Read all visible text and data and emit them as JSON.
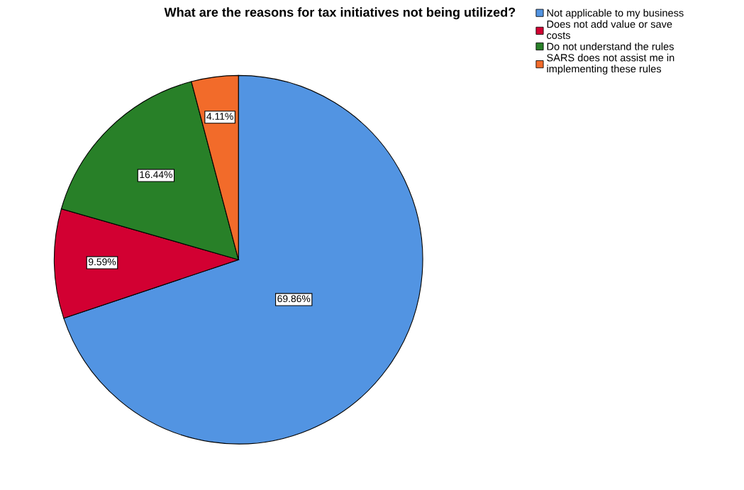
{
  "chart_data": {
    "type": "pie",
    "title": "What are the reasons for tax initiatives not being utilized?",
    "categories": [
      "Not applicable to my business",
      "Does not add value or save\ncosts",
      "Do not understand the rules",
      "SARS does not assist me in\nimplementing these rules"
    ],
    "values": [
      69.86,
      9.59,
      16.44,
      4.11
    ],
    "colors": [
      "#5294e2",
      "#d20032",
      "#288028",
      "#f26b2a"
    ],
    "value_labels": [
      "69.86%",
      "9.59%",
      "16.44%",
      "4.11%"
    ],
    "legend": "top right"
  }
}
